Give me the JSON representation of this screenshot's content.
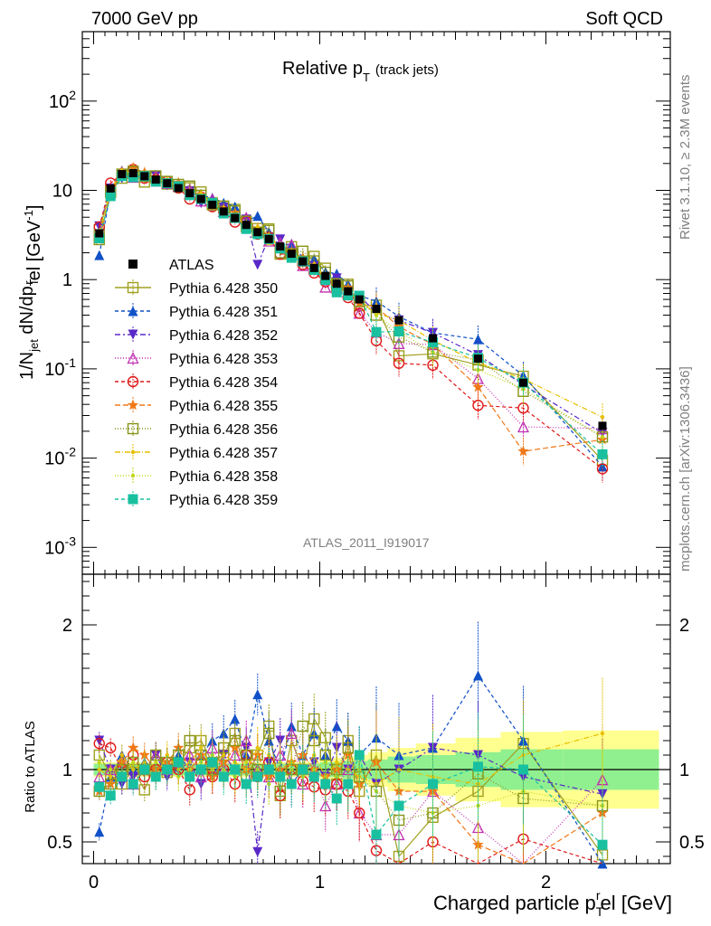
{
  "header": {
    "left": "7000 GeV pp",
    "right": "Soft QCD",
    "plot_title": "Relative p",
    "plot_title_sub": "T",
    "plot_title_suffix": "(track jets)",
    "analysis_label": "ATLAS_2011_I919017",
    "side_label_top": "Rivet 3.1.10, ≥ 2.3M events",
    "side_label_bottom": "mcplots.cern.ch [arXiv:1306.3436]"
  },
  "chart_data": [
    {
      "type": "scatter",
      "title": "Relative pT (track jets)",
      "xlabel": "Charged particle p_T^rel [GeV]",
      "ylabel": "1/N_jet dN/dp_T^rel [GeV^-1]",
      "yscale": "log",
      "xlim": [
        -0.05,
        2.55
      ],
      "ylim": [
        0.0005,
        600
      ],
      "x_ticks": [
        "0",
        "1",
        "2"
      ],
      "y_ticks": [
        "10^-3",
        "10^-2",
        "10^-1",
        "1",
        "10",
        "10^2"
      ],
      "x": [
        0.025,
        0.075,
        0.125,
        0.175,
        0.225,
        0.275,
        0.325,
        0.375,
        0.425,
        0.475,
        0.525,
        0.575,
        0.625,
        0.675,
        0.725,
        0.775,
        0.825,
        0.875,
        0.925,
        0.975,
        1.025,
        1.075,
        1.125,
        1.175,
        1.25,
        1.35,
        1.5,
        1.7,
        1.9,
        2.25
      ],
      "atlas_values": [
        3.3,
        10.5,
        15.2,
        15.6,
        14.4,
        13.2,
        12.0,
        10.6,
        9.3,
        8.0,
        6.9,
        5.8,
        4.9,
        4.1,
        3.4,
        2.85,
        2.35,
        1.95,
        1.6,
        1.35,
        1.1,
        0.9,
        0.74,
        0.6,
        0.47,
        0.35,
        0.22,
        0.13,
        0.07,
        0.023
      ],
      "legend": [
        {
          "name": "ATLAS",
          "color": "#000000",
          "marker": "square-filled",
          "dash": ""
        },
        {
          "name": "Pythia 6.428 350",
          "color": "#a0a020",
          "marker": "square-open",
          "dash": ""
        },
        {
          "name": "Pythia 6.428 351",
          "color": "#1050c8",
          "marker": "triangle-up",
          "dash": "4,3"
        },
        {
          "name": "Pythia 6.428 352",
          "color": "#5a28c8",
          "marker": "triangle-down",
          "dash": "6,3,2,3"
        },
        {
          "name": "Pythia 6.428 353",
          "color": "#c030b0",
          "marker": "triangle-open",
          "dash": "1,2"
        },
        {
          "name": "Pythia 6.428 354",
          "color": "#e01818",
          "marker": "circle-open",
          "dash": "4,3"
        },
        {
          "name": "Pythia 6.428 355",
          "color": "#f07818",
          "marker": "star",
          "dash": "6,3"
        },
        {
          "name": "Pythia 6.428 356",
          "color": "#889418",
          "marker": "square-open",
          "dash": "1,2"
        },
        {
          "name": "Pythia 6.428 357",
          "color": "#e8c000",
          "marker": "dot",
          "dash": "6,2,1,2"
        },
        {
          "name": "Pythia 6.428 358",
          "color": "#c0d818",
          "marker": "dot",
          "dash": "1,2"
        },
        {
          "name": "Pythia 6.428 359",
          "color": "#18c0a0",
          "marker": "square-filled",
          "dash": "4,3"
        }
      ]
    },
    {
      "type": "line",
      "ylabel": "Ratio to ATLAS",
      "xlabel": "Charged particle p_T^rel [GeV]",
      "xlim": [
        -0.05,
        2.55
      ],
      "ylim": [
        0.35,
        2.35
      ],
      "x_ticks": [
        "0",
        "1",
        "2"
      ],
      "y_ticks": [
        "0.5",
        "1",
        "2"
      ],
      "x": [
        0.025,
        0.075,
        0.125,
        0.175,
        0.225,
        0.275,
        0.325,
        0.375,
        0.425,
        0.475,
        0.525,
        0.575,
        0.625,
        0.675,
        0.725,
        0.775,
        0.825,
        0.875,
        0.925,
        0.975,
        1.025,
        1.075,
        1.125,
        1.175,
        1.25,
        1.35,
        1.5,
        1.7,
        1.9,
        2.25
      ],
      "series": [
        {
          "name": "Pythia 6.428 350",
          "values": [
            1.1,
            0.96,
            0.9,
            1.0,
            0.86,
            1.05,
            0.98,
            1.04,
            1.15,
            1.2,
            1.05,
            1.1,
            1.25,
            0.95,
            1.1,
            1.3,
            0.82,
            1.2,
            1.0,
            1.35,
            1.22,
            0.9,
            1.2,
            0.85,
            1.1,
            0.4,
            0.67,
            0.85,
            1.18,
            0.41
          ]
        },
        {
          "name": "Pythia 6.428 351",
          "values": [
            0.57,
            0.95,
            1.1,
            1.0,
            1.05,
            0.95,
            1.05,
            1.1,
            1.0,
            1.1,
            1.2,
            1.25,
            1.35,
            1.1,
            1.52,
            1.2,
            1.0,
            1.3,
            1.1,
            1.25,
            1.1,
            1.3,
            1.2,
            1.1,
            1.22,
            1.1,
            1.15,
            1.65,
            1.2,
            0.35
          ]
        },
        {
          "name": "Pythia 6.428 352",
          "values": [
            1.2,
            1.0,
            0.9,
            0.95,
            1.0,
            1.1,
            0.95,
            1.0,
            1.05,
            0.9,
            0.95,
            1.1,
            1.0,
            1.15,
            0.43,
            1.05,
            1.2,
            0.9,
            1.0,
            1.05,
            0.95,
            1.15,
            1.0,
            1.1,
            0.9,
            1.0,
            1.15,
            1.1,
            0.95,
            0.83
          ]
        },
        {
          "name": "Pythia 6.428 353",
          "values": [
            0.95,
            1.0,
            1.05,
            0.9,
            1.0,
            1.1,
            1.0,
            1.05,
            1.1,
            0.95,
            1.15,
            1.0,
            1.1,
            1.2,
            1.0,
            0.95,
            1.1,
            1.25,
            0.9,
            1.0,
            0.75,
            0.9,
            1.0,
            0.7,
            0.55,
            0.55,
            0.85,
            0.6,
            0.32,
            0.93
          ]
        },
        {
          "name": "Pythia 6.428 354",
          "values": [
            1.18,
            1.15,
            1.0,
            1.1,
            0.95,
            1.0,
            1.05,
            1.0,
            0.86,
            1.05,
            0.95,
            1.0,
            0.9,
            1.1,
            0.95,
            1.05,
            0.82,
            1.0,
            0.92,
            0.88,
            0.86,
            0.9,
            0.85,
            0.7,
            0.44,
            0.33,
            0.5,
            0.3,
            0.52,
            0.33
          ]
        },
        {
          "name": "Pythia 6.428 355",
          "values": [
            0.85,
            0.9,
            1.05,
            1.15,
            1.1,
            1.0,
            1.05,
            1.15,
            1.0,
            1.1,
            0.95,
            1.05,
            1.15,
            1.0,
            1.1,
            0.95,
            1.0,
            1.05,
            1.1,
            1.0,
            0.95,
            1.0,
            1.1,
            0.9,
            1.05,
            0.85,
            0.85,
            0.48,
            0.17,
            0.7
          ]
        },
        {
          "name": "Pythia 6.428 356",
          "values": [
            0.85,
            0.9,
            1.0,
            1.05,
            1.0,
            1.1,
            1.05,
            1.1,
            1.2,
            1.1,
            1.0,
            1.15,
            1.2,
            1.1,
            1.0,
            1.25,
            0.85,
            1.0,
            1.3,
            1.2,
            1.1,
            1.0,
            1.15,
            0.95,
            0.85,
            0.65,
            0.7,
            0.97,
            0.8,
            0.75
          ]
        },
        {
          "name": "Pythia 6.428 357",
          "values": [
            1.0,
            0.95,
            1.1,
            1.0,
            1.05,
            0.95,
            1.1,
            1.0,
            1.05,
            1.15,
            1.0,
            1.1,
            1.05,
            1.0,
            1.15,
            1.1,
            0.95,
            1.05,
            1.0,
            1.1,
            0.95,
            1.05,
            1.0,
            0.95,
            0.9,
            1.0,
            0.95,
            0.9,
            1.1,
            1.25
          ]
        },
        {
          "name": "Pythia 6.428 358",
          "values": [
            1.05,
            1.0,
            0.95,
            1.05,
            1.0,
            1.05,
            1.0,
            0.95,
            1.0,
            1.05,
            1.1,
            1.0,
            0.95,
            1.05,
            1.0,
            0.9,
            1.05,
            1.0,
            0.95,
            1.0,
            1.05,
            0.95,
            0.9,
            1.0,
            0.85,
            0.75,
            0.7,
            0.75,
            0.85,
            0.75
          ]
        },
        {
          "name": "Pythia 6.428 359",
          "values": [
            0.88,
            0.82,
            0.95,
            0.9,
            1.0,
            0.95,
            1.0,
            1.05,
            0.95,
            1.0,
            1.05,
            0.95,
            1.0,
            0.9,
            0.95,
            1.0,
            0.95,
            0.9,
            1.0,
            0.95,
            0.9,
            0.8,
            0.9,
            1.1,
            0.55,
            0.75,
            0.9,
            1.02,
            1.0,
            0.48
          ]
        }
      ],
      "band_inner": [
        0.04,
        0.04,
        0.04,
        0.04,
        0.04,
        0.04,
        0.04,
        0.04,
        0.04,
        0.04,
        0.04,
        0.04,
        0.04,
        0.04,
        0.04,
        0.04,
        0.04,
        0.04,
        0.04,
        0.04,
        0.05,
        0.05,
        0.06,
        0.06,
        0.07,
        0.09,
        0.1,
        0.12,
        0.14,
        0.14
      ],
      "band_outer": [
        0.05,
        0.05,
        0.05,
        0.05,
        0.05,
        0.05,
        0.05,
        0.05,
        0.05,
        0.05,
        0.05,
        0.05,
        0.05,
        0.05,
        0.05,
        0.05,
        0.05,
        0.05,
        0.05,
        0.05,
        0.07,
        0.08,
        0.09,
        0.1,
        0.12,
        0.15,
        0.18,
        0.22,
        0.26,
        0.27
      ]
    }
  ]
}
